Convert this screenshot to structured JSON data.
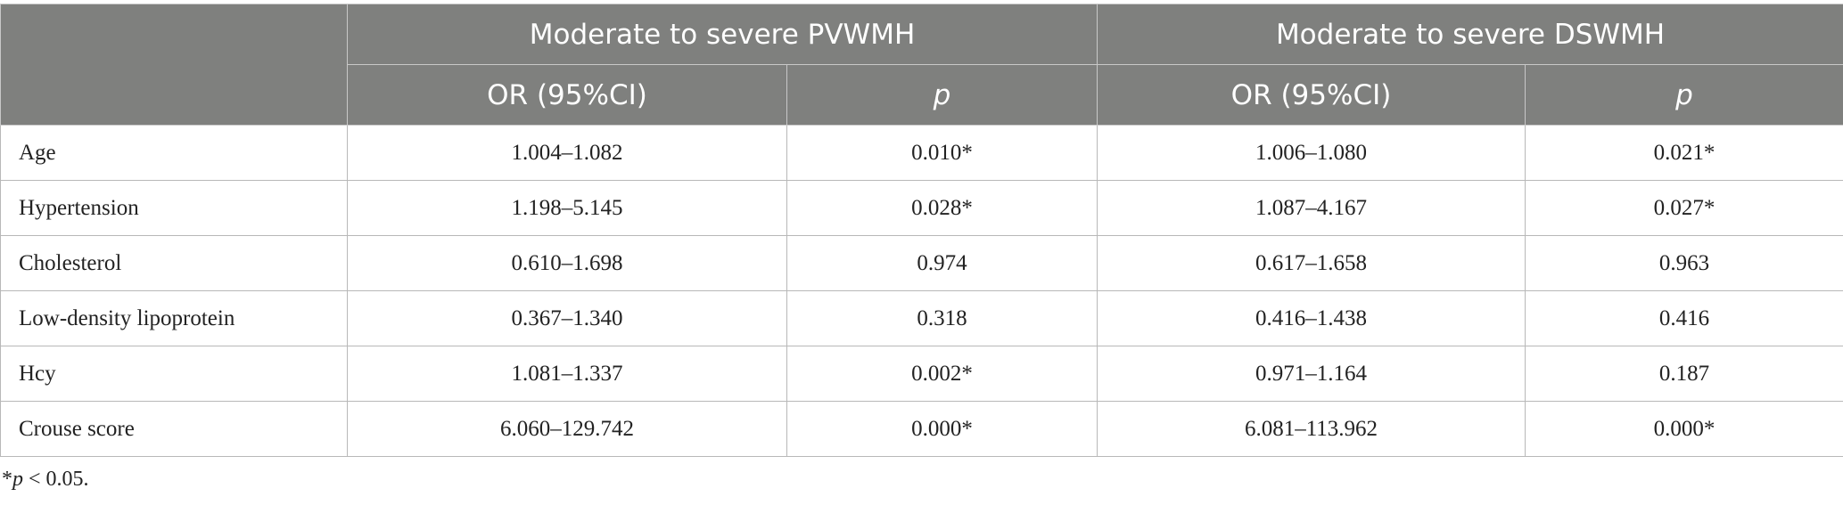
{
  "header": {
    "row_label": "",
    "groups": [
      "Moderate to severe PVWMH",
      "Moderate to severe DSWMH"
    ],
    "subheaders": [
      "OR (95%CI)",
      "p",
      "OR (95%CI)",
      "p"
    ]
  },
  "table": {
    "rows": [
      [
        "Age",
        "1.004–1.082",
        "0.010*",
        "1.006–1.080",
        "0.021*"
      ],
      [
        "Hypertension",
        "1.198–5.145",
        "0.028*",
        "1.087–4.167",
        "0.027*"
      ],
      [
        "Cholesterol",
        "0.610–1.698",
        "0.974",
        "0.617–1.658",
        "0.963"
      ],
      [
        "Low-density lipoprotein",
        "0.367–1.340",
        "0.318",
        "0.416–1.438",
        "0.416"
      ],
      [
        "Hcy",
        "1.081–1.337",
        "0.002*",
        "0.971–1.164",
        "0.187"
      ],
      [
        "Crouse score",
        "6.060–129.742",
        "0.000*",
        "6.081–113.962",
        "0.000*"
      ]
    ]
  },
  "footnote": {
    "mark": "*",
    "symbol": "p",
    "text": " < 0.05."
  }
}
